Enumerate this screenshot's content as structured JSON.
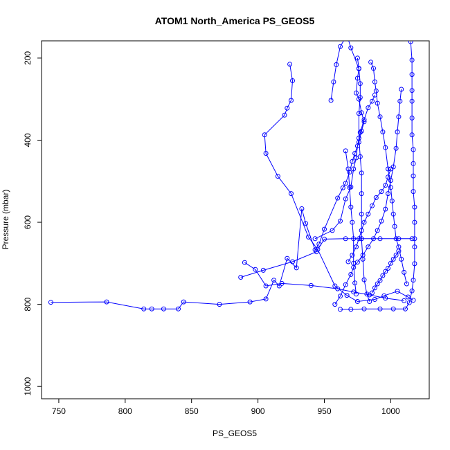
{
  "chart_data": {
    "type": "scatter",
    "title": "ATOM1 North_America PS_GEOS5",
    "xlabel": "PS_GEOS5",
    "ylabel": "Pressure (mbar)",
    "xlim": [
      737,
      1029
    ],
    "ylim": [
      1030,
      158
    ],
    "y_reversed": true,
    "x_ticks": [
      750,
      800,
      850,
      900,
      950,
      1000
    ],
    "y_ticks": [
      200,
      400,
      600,
      800,
      1000
    ],
    "x_tick_labels": [
      "750",
      "800",
      "850",
      "900",
      "950",
      "1000"
    ],
    "y_tick_labels": [
      "200",
      "400",
      "600",
      "800",
      "1000"
    ],
    "grid": false,
    "legend": "none",
    "marker": "open-circle",
    "connected": true,
    "series": [
      {
        "color": "#0000ff",
        "points": [
          [
            744,
            795
          ],
          [
            786,
            794
          ],
          [
            814,
            811
          ],
          [
            820,
            811
          ],
          [
            829,
            811
          ],
          [
            840,
            811
          ],
          [
            844,
            794
          ],
          [
            871,
            800
          ],
          [
            894,
            794
          ],
          [
            906,
            787
          ],
          [
            912,
            741
          ],
          [
            916,
            755
          ],
          [
            922,
            688
          ],
          [
            929,
            711
          ],
          [
            933,
            567
          ],
          [
            936,
            603
          ],
          [
            943,
            667
          ],
          [
            946,
            653
          ],
          [
            950,
            617
          ],
          [
            960,
            541
          ],
          [
            964,
            516
          ],
          [
            966,
            505
          ],
          [
            969,
            478
          ],
          [
            971,
            452
          ],
          [
            973,
            432
          ],
          [
            976,
            405
          ],
          [
            978,
            378
          ],
          [
            980,
            355
          ],
          [
            978,
            333
          ],
          [
            976,
            300
          ],
          [
            974,
            285
          ],
          [
            975,
            249
          ],
          [
            976,
            226
          ],
          [
            970,
            175
          ],
          [
            967,
            144
          ],
          [
            962,
            172
          ],
          [
            959,
            216
          ],
          [
            957,
            258
          ],
          [
            955,
            303
          ]
        ]
      },
      {
        "color": "#0000ff",
        "points": [
          [
            924,
            215
          ],
          [
            926,
            255
          ],
          [
            925,
            303
          ],
          [
            922,
            322
          ],
          [
            920,
            339
          ],
          [
            905,
            387
          ],
          [
            906,
            432
          ],
          [
            915,
            488
          ],
          [
            925,
            530
          ],
          [
            938,
            636
          ],
          [
            945,
            666
          ],
          [
            958,
            755
          ],
          [
            967,
            778
          ],
          [
            975,
            793
          ],
          [
            988,
            788
          ],
          [
            995,
            779
          ],
          [
            1005,
            768
          ],
          [
            1013,
            782
          ],
          [
            1017,
            790
          ]
        ]
      },
      {
        "color": "#0000ff",
        "points": [
          [
            890,
            698
          ],
          [
            898,
            715
          ],
          [
            906,
            755
          ],
          [
            918,
            749
          ],
          [
            940,
            754
          ],
          [
            960,
            762
          ],
          [
            972,
            770
          ],
          [
            984,
            777
          ],
          [
            996,
            785
          ],
          [
            1010,
            791
          ]
        ]
      },
      {
        "color": "#0000ff",
        "points": [
          [
            887,
            734
          ],
          [
            904,
            717
          ],
          [
            926,
            696
          ],
          [
            944,
            672
          ],
          [
            950,
            641
          ],
          [
            966,
            640
          ],
          [
            978,
            640
          ],
          [
            992,
            640
          ],
          [
            1006,
            640
          ],
          [
            1016,
            640
          ]
        ]
      },
      {
        "color": "#0000ff",
        "points": [
          [
            943,
            640
          ],
          [
            956,
            620
          ],
          [
            962,
            597
          ],
          [
            966,
            543
          ],
          [
            970,
            514
          ],
          [
            972,
            470
          ],
          [
            974,
            443
          ],
          [
            975,
            414
          ],
          [
            977,
            381
          ],
          [
            980,
            350
          ],
          [
            983,
            321
          ],
          [
            986,
            305
          ],
          [
            988,
            290
          ]
        ]
      },
      {
        "color": "#0000ff",
        "points": [
          [
            958,
            800
          ],
          [
            962,
            780
          ],
          [
            966,
            752
          ],
          [
            970,
            727
          ],
          [
            972,
            710
          ],
          [
            975,
            697
          ],
          [
            979,
            680
          ],
          [
            983,
            660
          ],
          [
            987,
            640
          ],
          [
            990,
            620
          ],
          [
            993,
            597
          ],
          [
            996,
            568
          ],
          [
            998,
            530
          ],
          [
            1000,
            498
          ],
          [
            1002,
            465
          ],
          [
            1004,
            420
          ],
          [
            1005,
            380
          ],
          [
            1006,
            343
          ],
          [
            1007,
            305
          ],
          [
            1008,
            276
          ]
        ]
      },
      {
        "color": "#0000ff",
        "points": [
          [
            962,
            812
          ],
          [
            970,
            812
          ],
          [
            980,
            811
          ],
          [
            992,
            811
          ],
          [
            1002,
            811
          ],
          [
            1011,
            811
          ],
          [
            1014,
            796
          ],
          [
            1016,
            767
          ],
          [
            1017,
            741
          ],
          [
            1018,
            701
          ],
          [
            1018,
            660
          ],
          [
            1018,
            640
          ],
          [
            1018,
            600
          ],
          [
            1018,
            563
          ],
          [
            1017,
            525
          ],
          [
            1017,
            487
          ],
          [
            1017,
            457
          ],
          [
            1017,
            423
          ],
          [
            1016,
            387
          ],
          [
            1016,
            346
          ],
          [
            1016,
            305
          ],
          [
            1016,
            279
          ],
          [
            1016,
            240
          ],
          [
            1016,
            205
          ],
          [
            1015,
            160
          ]
        ]
      },
      {
        "color": "#0000ff",
        "points": [
          [
            975,
            200
          ],
          [
            976,
            225
          ],
          [
            977,
            262
          ],
          [
            977,
            296
          ],
          [
            976,
            335
          ],
          [
            976,
            395
          ],
          [
            977,
            440
          ],
          [
            978,
            480
          ],
          [
            978,
            530
          ],
          [
            978,
            580
          ],
          [
            978,
            640
          ],
          [
            979,
            690
          ],
          [
            980,
            740
          ],
          [
            982,
            775
          ],
          [
            984,
            793
          ]
        ]
      },
      {
        "color": "#0000ff",
        "points": [
          [
            1012,
            750
          ],
          [
            1010,
            722
          ],
          [
            1008,
            690
          ],
          [
            1006,
            660
          ],
          [
            1004,
            640
          ],
          [
            1003,
            610
          ],
          [
            1002,
            580
          ],
          [
            1001,
            548
          ],
          [
            1000,
            515
          ],
          [
            998,
            470
          ],
          [
            996,
            418
          ],
          [
            994,
            380
          ],
          [
            992,
            343
          ],
          [
            990,
            310
          ],
          [
            989,
            280
          ],
          [
            988,
            258
          ],
          [
            987,
            225
          ],
          [
            985,
            210
          ]
        ]
      },
      {
        "color": "#0000ff",
        "points": [
          [
            968,
            696
          ],
          [
            971,
            680
          ],
          [
            974,
            660
          ],
          [
            976,
            640
          ],
          [
            978,
            620
          ],
          [
            980,
            600
          ],
          [
            983,
            580
          ],
          [
            986,
            560
          ],
          [
            989,
            540
          ],
          [
            993,
            525
          ],
          [
            996,
            510
          ],
          [
            998,
            490
          ],
          [
            1000,
            470
          ]
        ]
      },
      {
        "color": "#0000ff",
        "points": [
          [
            986,
            772
          ],
          [
            988,
            760
          ],
          [
            990,
            750
          ],
          [
            992,
            742
          ],
          [
            994,
            730
          ],
          [
            996,
            720
          ],
          [
            998,
            712
          ],
          [
            1000,
            700
          ],
          [
            1002,
            690
          ],
          [
            1004,
            680
          ],
          [
            1006,
            670
          ]
        ]
      },
      {
        "color": "#0000ff",
        "points": [
          [
            966,
            426
          ],
          [
            968,
            470
          ],
          [
            969,
            515
          ],
          [
            970,
            563
          ],
          [
            971,
            600
          ],
          [
            972,
            640
          ],
          [
            972,
            700
          ],
          [
            973,
            748
          ],
          [
            974,
            775
          ]
        ]
      }
    ]
  }
}
